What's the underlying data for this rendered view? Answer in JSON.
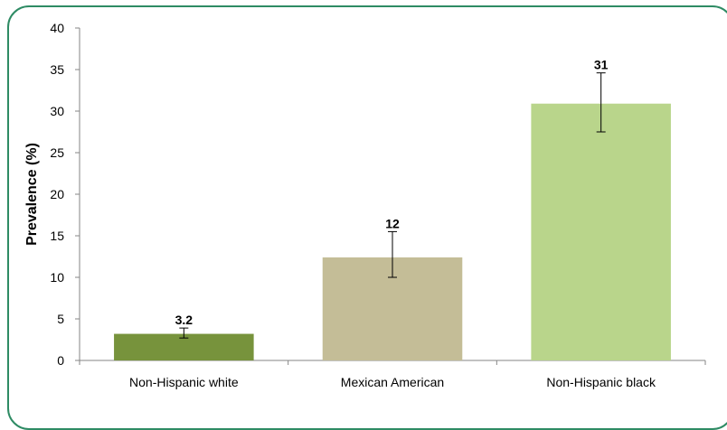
{
  "chart_data": {
    "type": "bar",
    "title": "",
    "xlabel": "",
    "ylabel": "Prevalence (%)",
    "ylim": [
      0,
      40
    ],
    "yticks": [
      0,
      5,
      10,
      15,
      20,
      25,
      30,
      35,
      40
    ],
    "grid": false,
    "legend": "none",
    "categories": [
      "Non-Hispanic white",
      "Mexican American",
      "Non-Hispanic black"
    ],
    "values": [
      3.2,
      12.4,
      30.9
    ],
    "data_labels": [
      "3.2",
      "12",
      "31"
    ],
    "error_low": [
      2.7,
      10.0,
      27.5
    ],
    "error_high": [
      3.9,
      15.5,
      34.6
    ],
    "colors": [
      "#77933c",
      "#c4bd97",
      "#b9d58b"
    ],
    "frame_color": "#2e8b64"
  }
}
